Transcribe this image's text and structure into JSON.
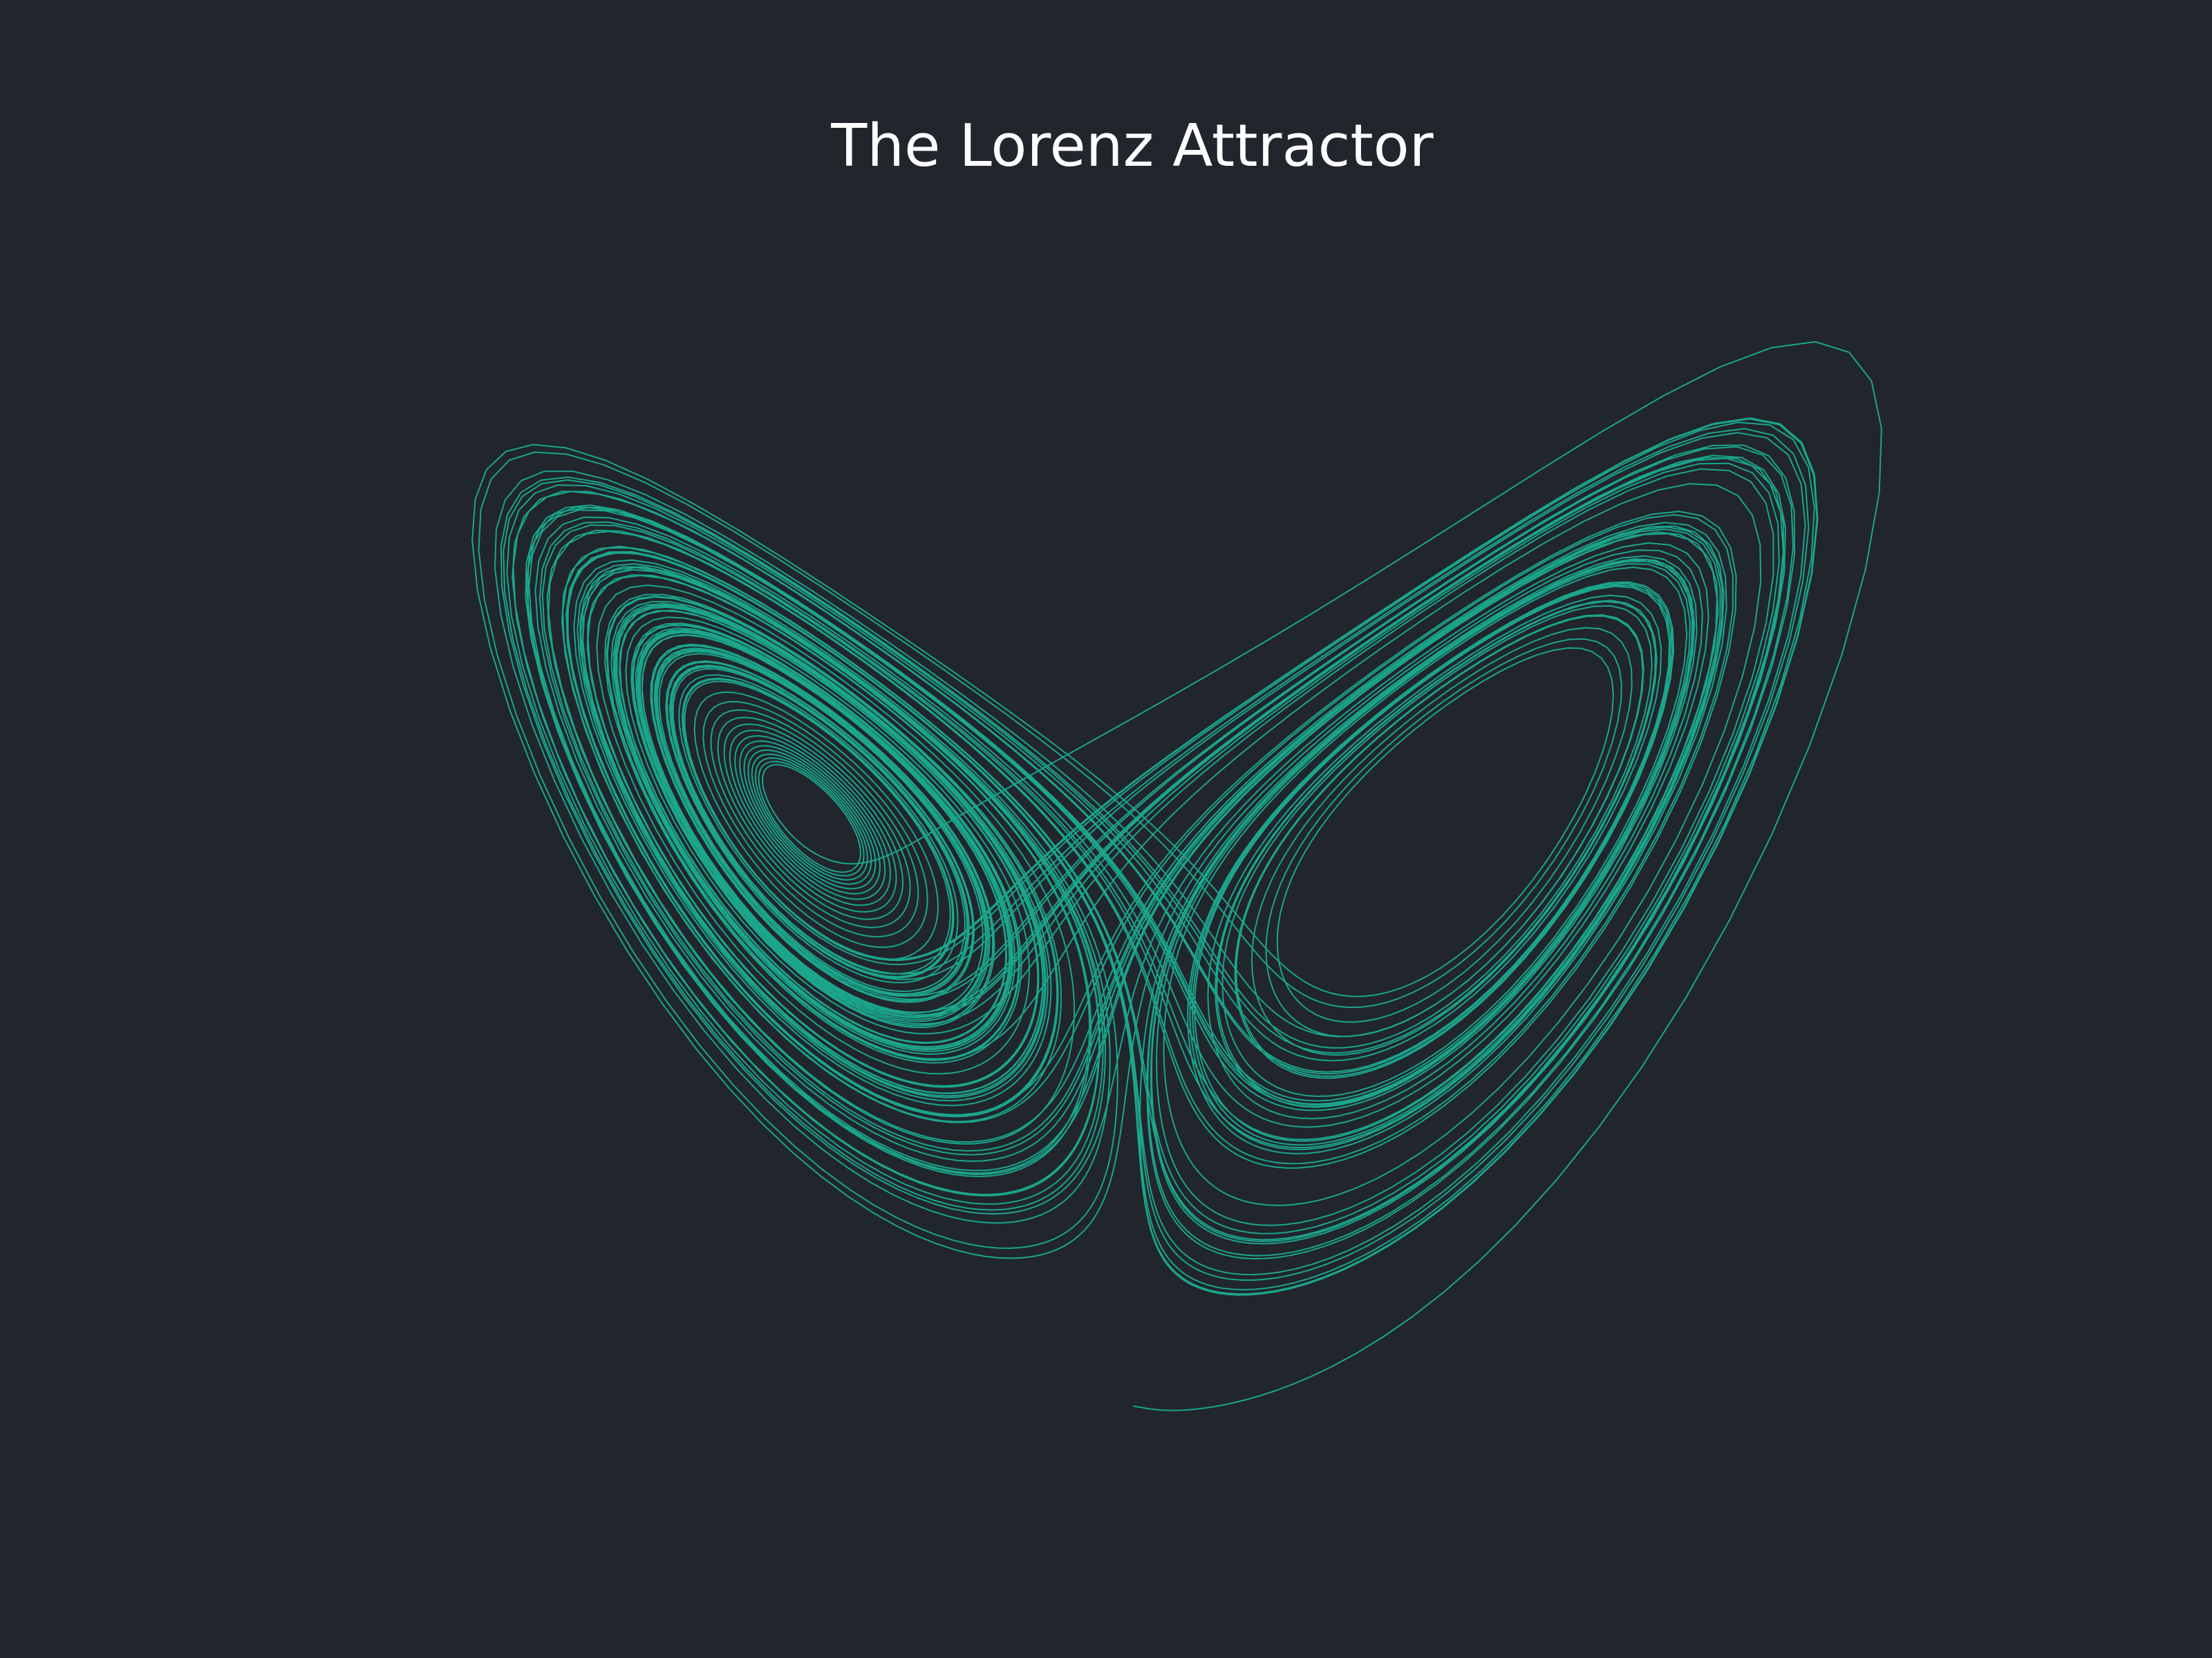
{
  "chart_data": {
    "type": "line",
    "title": "The Lorenz Attractor",
    "xlabel": "",
    "ylabel": "",
    "axes_visible": false,
    "grid": false,
    "background_color": "#21252c",
    "line_color": "#1abc9c",
    "series": [
      {
        "system": "lorenz",
        "projection": [
          "x",
          "z"
        ],
        "parameters": {
          "sigma": 10,
          "rho": 28,
          "beta": 2.6667
        },
        "initial_state": {
          "x": 0.0,
          "y": 1.0,
          "z": 1.05
        },
        "dt": 0.01,
        "steps": 10000
      }
    ],
    "xlim": [
      -21,
      21
    ],
    "ylim": [
      0,
      52
    ]
  }
}
